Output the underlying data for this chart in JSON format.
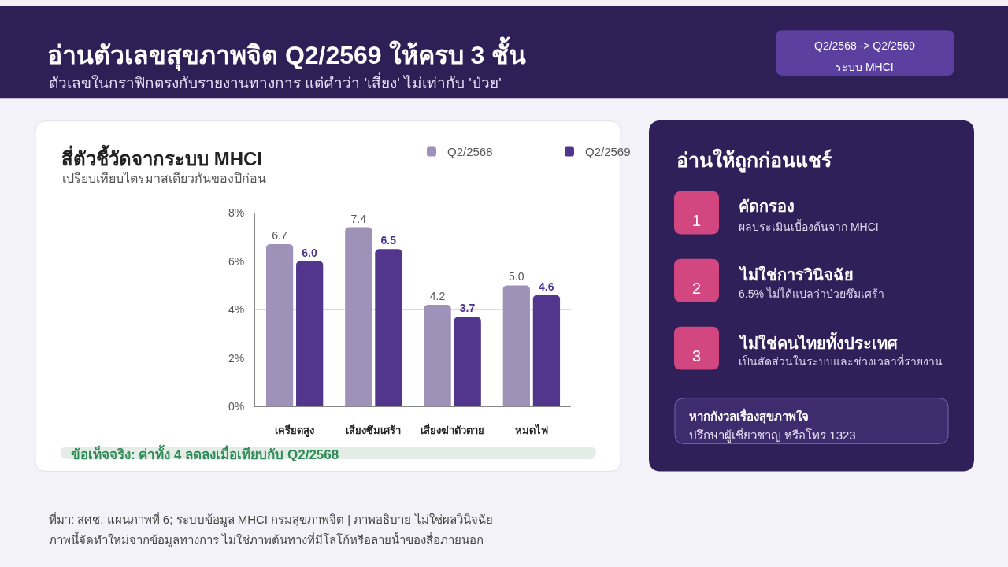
{
  "chart_data": [
    {
      "type": "other",
      "title": "อ่านตัวเลขสุขภาพจิต Q2/2569 ให้ครบ 3 ชั้น",
      "subtitle": "ตัวเลขในกราฟิกตรงกับรายงานทางการ แต่คำว่า 'เสี่ยง' ไม่เท่ากับ 'ป่วย'",
      "annotations": [
        "Q2/2568 -> Q2/2569",
        "ระบบ MHCI"
      ]
    },
    {
      "type": "bar",
      "title": "สี่ตัวชี้วัดจากระบบ MHCI",
      "subtitle": "เปรียบเทียบไตรมาสเดียวกันของปีก่อน",
      "categories": [
        "เครียดสูง",
        "เสี่ยงซึมเศร้า",
        "เสี่ยงฆ่าตัวตาย",
        "หมดไฟ"
      ],
      "series": [
        {
          "name": "Q2/2568",
          "color": "#9e92b9",
          "values": [
            6.7,
            7.4,
            4.2,
            5.0
          ],
          "value_labels": [
            "6.7",
            "7.4",
            "4.2",
            "5.0"
          ]
        },
        {
          "name": "Q2/2569",
          "color": "#52368e",
          "values": [
            6.0,
            6.5,
            3.7,
            4.6
          ],
          "value_labels": [
            "6.0",
            "6.5",
            "3.7",
            "4.6"
          ]
        }
      ],
      "ylim": [
        0,
        8
      ],
      "yticks": [
        {
          "value": 0,
          "label": "0%"
        },
        {
          "value": 2,
          "label": "2%"
        },
        {
          "value": 4,
          "label": "4%"
        },
        {
          "value": 6,
          "label": "6%"
        },
        {
          "value": 8,
          "label": "8%"
        }
      ],
      "grid": "y",
      "legend": "top right",
      "annotations": [
        "ข้อเท็จจริง: ค่าทั้ง 4 ลดลงเมื่อเทียบกับ Q2/2568",
        "ที่มา: สศช. แผนภาพที่ 6; ระบบข้อมูล MHCI กรมสุขภาพจิต | ภาพอธิบาย ไม่ใช่ผลวินิจฉัย",
        "ภาพนี้จัดทำใหม่จากข้อมูลทางการ ไม่ใช่ภาพต้นทางที่มีโลโก้หรือลายน้ำของสื่อภายนอก"
      ]
    },
    {
      "type": "other",
      "title": "อ่านให้ถูกก่อนแชร์",
      "annotations": [
        "1",
        "คัดกรอง",
        "ผลประเมินเบื้องต้นจาก MHCI",
        "2",
        "ไม่ใช่การวินิจฉัย",
        "6.5% ไม่ได้แปลว่าป่วยซึมเศร้า",
        "3",
        "ไม่ใช่คนไทยทั้งประเทศ",
        "เป็นสัดส่วนในระบบและช่วงเวลาที่รายงาน",
        "หากกังวลเรื่องสุขภาพใจ",
        "ปรึกษาผู้เชี่ยวชาญ หรือโทร 1323"
      ]
    }
  ]
}
